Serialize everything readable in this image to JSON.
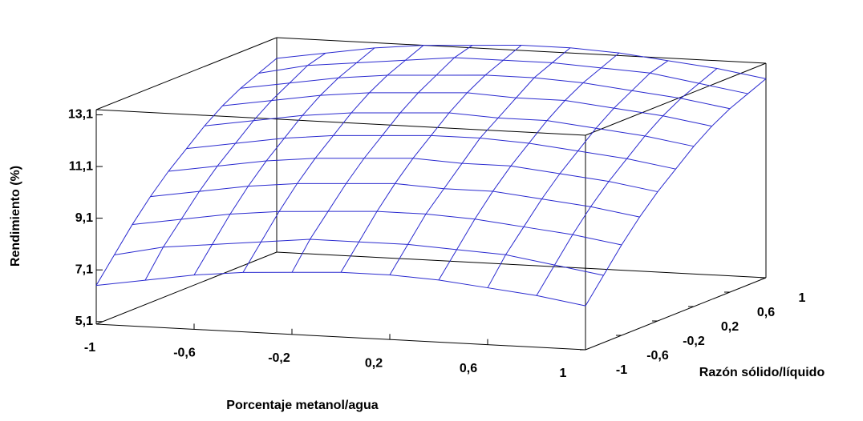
{
  "chart_data": {
    "type": "surface",
    "xlabel": "Porcentaje metanol/agua",
    "ylabel": "Razón sólido/líquido",
    "zlabel": "Rendimiento (%)",
    "color": "#2a2acf",
    "x": [
      -1,
      -0.8,
      -0.6,
      -0.4,
      -0.2,
      0,
      0.2,
      0.4,
      0.6,
      0.8,
      1
    ],
    "y": [
      -1,
      -0.8,
      -0.6,
      -0.4,
      -0.2,
      0,
      0.2,
      0.4,
      0.6,
      0.8,
      1
    ],
    "z": [
      [
        6.5,
        6.8,
        7.1,
        7.3,
        7.4,
        7.5,
        7.5,
        7.4,
        7.2,
        7.0,
        6.7
      ],
      [
        7.4,
        7.8,
        8.0,
        8.2,
        8.4,
        8.4,
        8.4,
        8.3,
        8.2,
        7.9,
        7.6
      ],
      [
        8.3,
        8.6,
        8.9,
        9.1,
        9.2,
        9.3,
        9.3,
        9.2,
        9.0,
        8.8,
        8.5
      ],
      [
        9.1,
        9.4,
        9.7,
        9.9,
        10.0,
        10.1,
        10.0,
        10.0,
        9.8,
        9.6,
        9.3
      ],
      [
        9.8,
        10.1,
        10.4,
        10.6,
        10.7,
        10.8,
        10.7,
        10.7,
        10.5,
        10.3,
        10.0
      ],
      [
        10.4,
        10.7,
        11.0,
        11.2,
        11.3,
        11.4,
        11.4,
        11.3,
        11.1,
        10.9,
        10.6
      ],
      [
        11.0,
        11.3,
        11.6,
        11.8,
        11.9,
        12.0,
        11.9,
        11.9,
        11.7,
        11.5,
        11.2
      ],
      [
        11.5,
        11.8,
        12.1,
        12.3,
        12.4,
        12.5,
        12.4,
        12.4,
        12.2,
        12.0,
        11.7
      ],
      [
        11.9,
        12.2,
        12.5,
        12.7,
        12.8,
        12.9,
        12.9,
        12.8,
        12.6,
        12.4,
        12.1
      ],
      [
        12.2,
        12.6,
        12.8,
        13.0,
        13.2,
        13.2,
        13.2,
        13.1,
        13.0,
        12.7,
        12.4
      ],
      [
        12.5,
        12.8,
        13.1,
        13.3,
        13.4,
        13.5,
        13.5,
        13.4,
        13.2,
        13.0,
        12.7
      ]
    ],
    "xlim": [
      -1,
      1
    ],
    "ylim": [
      -1,
      1
    ],
    "zlim": [
      5.0,
      13.3
    ],
    "xticks": [
      -1,
      {
        "value": -0.6,
        "label": "-0,6"
      },
      {
        "value": -0.2,
        "label": "-0,2"
      },
      {
        "value": 0.2,
        "label": "0,2"
      },
      {
        "value": 0.6,
        "label": "0,6"
      },
      1
    ],
    "yticks": [
      -1,
      {
        "value": -0.6,
        "label": "-0,6"
      },
      {
        "value": -0.2,
        "label": "-0,2"
      },
      {
        "value": 0.2,
        "label": "0,2"
      },
      {
        "value": 0.6,
        "label": "0,6"
      },
      1
    ],
    "zticks": [
      {
        "value": 5.1,
        "label": "5,1"
      },
      {
        "value": 7.1,
        "label": "7,1"
      },
      {
        "value": 9.1,
        "label": "9,1"
      },
      {
        "value": 11.1,
        "label": "11,1"
      },
      {
        "value": 13.1,
        "label": "13,1"
      }
    ]
  }
}
